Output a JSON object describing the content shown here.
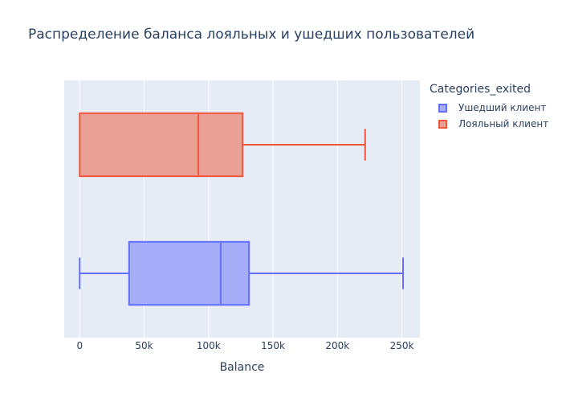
{
  "title": "Распределение баланса лояльных и ушедших пользователей",
  "legend": {
    "title": "Categories_exited",
    "items": [
      {
        "label": "Ушедший клиент",
        "fill": "#a5adf8",
        "stroke": "#636efa"
      },
      {
        "label": "Лояльный клиент",
        "fill": "#e9a196",
        "stroke": "#ef553b"
      }
    ]
  },
  "chart_data": {
    "type": "box",
    "orientation": "horizontal",
    "xlabel": "Balance",
    "xlim": [
      -12000,
      264000
    ],
    "xticks": [
      0,
      50000,
      100000,
      150000,
      200000,
      250000
    ],
    "xtick_labels": [
      "0",
      "50k",
      "100k",
      "150k",
      "200k",
      "250k"
    ],
    "grid": true,
    "legend_position": "right",
    "series": [
      {
        "name": "Ушедший клиент",
        "min": 0,
        "q1": 38300,
        "median": 109400,
        "q3": 131400,
        "max": 250900,
        "color": "#636efa"
      },
      {
        "name": "Лояльный клиент",
        "min": 0,
        "q1": 0,
        "median": 92100,
        "q3": 126400,
        "max": 221500,
        "color": "#ef553b"
      }
    ]
  }
}
